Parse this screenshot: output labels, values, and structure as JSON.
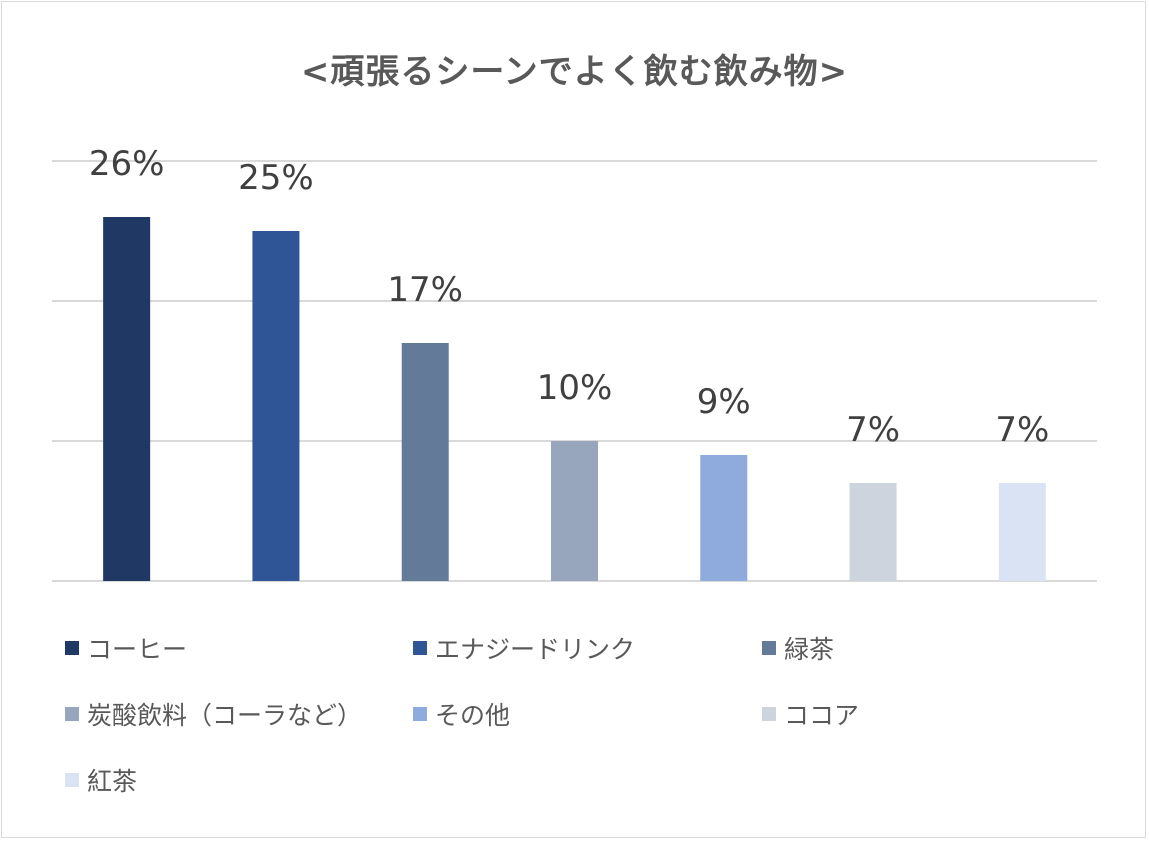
{
  "chart_data": {
    "type": "bar",
    "title": "<頑張るシーンでよく飲む飲み物>",
    "categories": [
      "コーヒー",
      "エナジードリンク",
      "緑茶",
      "炭酸飲料（コーラなど）",
      "その他",
      "ココア",
      "紅茶"
    ],
    "values": [
      26,
      25,
      17,
      10,
      9,
      7,
      7
    ],
    "value_labels": [
      "26%",
      "25%",
      "17%",
      "10%",
      "9%",
      "7%",
      "7%"
    ],
    "colors": [
      "#1f3864",
      "#2f5597",
      "#637a99",
      "#97a6bd",
      "#8faadc",
      "#cdd4de",
      "#dae3f3"
    ],
    "ylim": [
      0,
      30
    ],
    "grid": true,
    "legend_position": "bottom",
    "xlabel": "",
    "ylabel": ""
  }
}
